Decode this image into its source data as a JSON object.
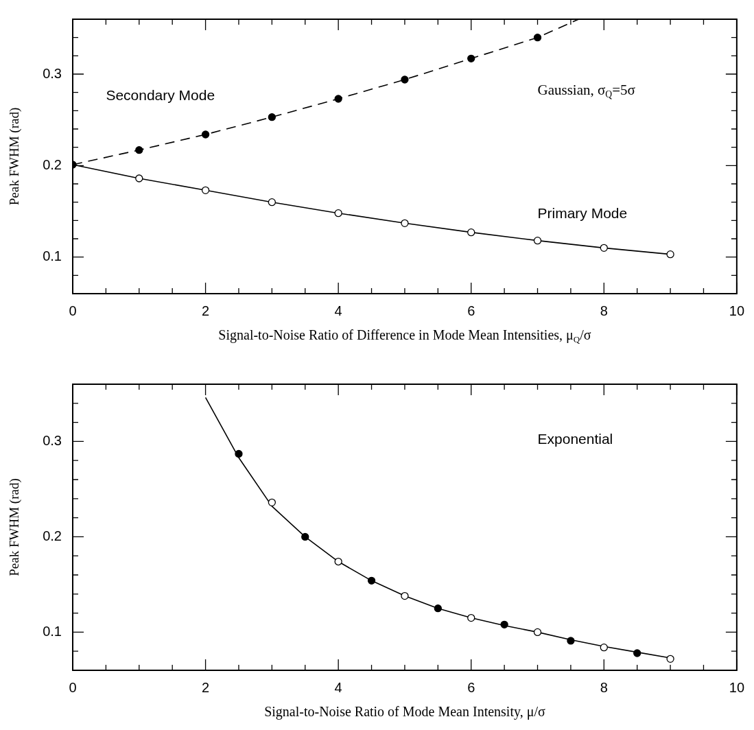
{
  "chart_data": [
    {
      "type": "line",
      "xlabel": "Signal-to-Noise Ratio of Difference in Mode Mean Intensities, μ$_{Q}$/σ",
      "ylabel": "Peak FWHM (rad)",
      "xlim": [
        0,
        10
      ],
      "xticks": [
        0,
        {
          "value": 0.5,
          "label": null
        },
        {
          "value": 1,
          "label": null
        },
        {
          "value": 1.5,
          "label": null
        },
        2,
        {
          "value": 2.5,
          "label": null
        },
        {
          "value": 3,
          "label": null
        },
        {
          "value": 3.5,
          "label": null
        },
        4,
        {
          "value": 4.5,
          "label": null
        },
        {
          "value": 5,
          "label": null
        },
        {
          "value": 5.5,
          "label": null
        },
        6,
        {
          "value": 6.5,
          "label": null
        },
        {
          "value": 7,
          "label": null
        },
        {
          "value": 7.5,
          "label": null
        },
        8,
        {
          "value": 8.5,
          "label": null
        },
        {
          "value": 9,
          "label": null
        },
        {
          "value": 9.5,
          "label": null
        },
        10
      ],
      "ylim": [
        0.06,
        0.36
      ],
      "yticks": [
        {
          "value": 0.08,
          "label": null
        },
        0.1,
        {
          "value": 0.12,
          "label": null
        },
        {
          "value": 0.14,
          "label": null
        },
        {
          "value": 0.16,
          "label": null
        },
        {
          "value": 0.18,
          "label": null
        },
        0.2,
        {
          "value": 0.22,
          "label": null
        },
        {
          "value": 0.24,
          "label": null
        },
        {
          "value": 0.26,
          "label": null
        },
        {
          "value": 0.28,
          "label": null
        },
        0.3,
        {
          "value": 0.32,
          "label": null
        },
        {
          "value": 0.34,
          "label": null
        }
      ],
      "annotations": [
        "Gaussian, σ$_{Q}$=5σ"
      ],
      "series": [
        {
          "name": "Secondary Mode",
          "line_style": "dashed",
          "marker": "none",
          "color": "#000000",
          "x": [
            0,
            1,
            2,
            3,
            4,
            5,
            6,
            7,
            7.62
          ],
          "values": [
            0.201,
            0.217,
            0.234,
            0.253,
            0.273,
            0.294,
            0.317,
            0.34,
            0.36
          ]
        },
        {
          "name": "Primary Mode",
          "line_style": "solid",
          "marker": "none",
          "color": "#000000",
          "x": [
            0,
            1,
            2,
            3,
            4,
            5,
            6,
            7,
            8,
            9
          ],
          "values": [
            0.201,
            0.186,
            0.173,
            0.16,
            0.148,
            0.137,
            0.127,
            0.118,
            0.11,
            0.103
          ]
        },
        {
          "type": "scatter",
          "marker": "circle",
          "color": "#000000",
          "colors": [
            "#000000",
            "#000000",
            "#000000",
            "#000000",
            "#000000",
            "#000000",
            "#000000",
            "#000000"
          ],
          "x": [
            0,
            1,
            2,
            3,
            4,
            5,
            6,
            7
          ],
          "values": [
            0.201,
            0.217,
            0.234,
            0.253,
            0.273,
            0.294,
            0.317,
            0.34
          ]
        },
        {
          "type": "scatter",
          "marker": "circle",
          "color": "#000000",
          "colors": [
            "#ffffff",
            "#ffffff",
            "#ffffff",
            "#ffffff",
            "#ffffff",
            "#ffffff",
            "#ffffff",
            "#ffffff",
            "#ffffff"
          ],
          "x": [
            1,
            2,
            3,
            4,
            5,
            6,
            7,
            8,
            9
          ],
          "values": [
            0.186,
            0.173,
            0.16,
            0.148,
            0.137,
            0.127,
            0.118,
            0.11,
            0.103
          ]
        }
      ]
    },
    {
      "type": "line",
      "xlabel": "Signal-to-Noise Ratio of Mode Mean Intensity, μ/σ",
      "ylabel": "Peak FWHM (rad)",
      "xlim": [
        0,
        10
      ],
      "xticks": [
        0,
        {
          "value": 0.5,
          "label": null
        },
        {
          "value": 1,
          "label": null
        },
        {
          "value": 1.5,
          "label": null
        },
        2,
        {
          "value": 2.5,
          "label": null
        },
        {
          "value": 3,
          "label": null
        },
        {
          "value": 3.5,
          "label": null
        },
        4,
        {
          "value": 4.5,
          "label": null
        },
        {
          "value": 5,
          "label": null
        },
        {
          "value": 5.5,
          "label": null
        },
        6,
        {
          "value": 6.5,
          "label": null
        },
        {
          "value": 7,
          "label": null
        },
        {
          "value": 7.5,
          "label": null
        },
        8,
        {
          "value": 8.5,
          "label": null
        },
        {
          "value": 9,
          "label": null
        },
        {
          "value": 9.5,
          "label": null
        },
        10
      ],
      "ylim": [
        0.06,
        0.36
      ],
      "yticks": [
        {
          "value": 0.08,
          "label": null
        },
        0.1,
        {
          "value": 0.12,
          "label": null
        },
        {
          "value": 0.14,
          "label": null
        },
        {
          "value": 0.16,
          "label": null
        },
        {
          "value": 0.18,
          "label": null
        },
        0.2,
        {
          "value": 0.22,
          "label": null
        },
        {
          "value": 0.24,
          "label": null
        },
        {
          "value": 0.26,
          "label": null
        },
        {
          "value": 0.28,
          "label": null
        },
        0.3,
        {
          "value": 0.32,
          "label": null
        },
        {
          "value": 0.34,
          "label": null
        }
      ],
      "annotations": [
        "Exponential"
      ],
      "series": [
        {
          "line_style": "solid",
          "marker": "none",
          "color": "#000000",
          "x": [
            2,
            2.5,
            3,
            3.5,
            4,
            4.5,
            5,
            5.5,
            6,
            6.5,
            7,
            7.5,
            8,
            8.5,
            9
          ],
          "values": [
            0.346,
            0.283,
            0.232,
            0.2,
            0.174,
            0.154,
            0.138,
            0.125,
            0.115,
            0.107,
            0.1,
            0.092,
            0.085,
            0.079,
            0.073
          ]
        },
        {
          "type": "scatter",
          "marker": "circle",
          "color": "#000000",
          "colors": [
            "#000000",
            "#000000",
            "#000000",
            "#000000",
            "#000000",
            "#000000",
            "#000000"
          ],
          "x": [
            2.5,
            3.5,
            4.5,
            5.5,
            6.5,
            7.5,
            8.5
          ],
          "values": [
            0.287,
            0.2,
            0.154,
            0.125,
            0.108,
            0.091,
            0.078
          ]
        },
        {
          "type": "scatter",
          "marker": "circle",
          "color": "#000000",
          "colors": [
            "#ffffff",
            "#ffffff",
            "#ffffff",
            "#ffffff",
            "#ffffff",
            "#ffffff",
            "#ffffff"
          ],
          "x": [
            3,
            4,
            5,
            6,
            7,
            8,
            9
          ],
          "values": [
            0.236,
            0.174,
            0.138,
            0.115,
            0.1,
            0.084,
            0.072
          ]
        }
      ]
    }
  ]
}
